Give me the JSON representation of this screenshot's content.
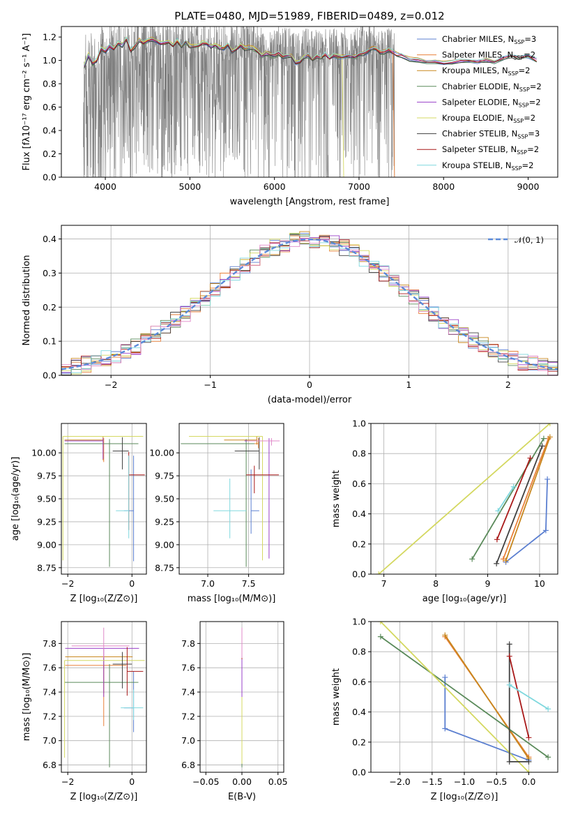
{
  "figure_title": "PLATE=0480, MJD=51989, FIBERID=0489, z=0.012",
  "colors": {
    "data": "#808080",
    "blue": "#5b7fd0",
    "orange": "#e8803a",
    "brown": "#c8871e",
    "green": "#5a8a5a",
    "purple": "#9a40c8",
    "yellow": "#d4d860",
    "black": "#404040",
    "red": "#a81818",
    "cyan": "#7fd8de",
    "pink": "#e088c8",
    "grid": "#b0b0b0",
    "normal": "#5b8ad8"
  },
  "chart_data": [
    {
      "id": "spectrum",
      "type": "line",
      "xlabel": "wavelength [Angstrom, rest frame]",
      "ylabel": "Flux [fλ10⁻¹⁷ erg cm⁻² s⁻¹ A⁻¹]",
      "xlim": [
        3480,
        9350
      ],
      "ylim": [
        0,
        1.29
      ],
      "xticks": [
        4000,
        5000,
        6000,
        7000,
        8000,
        9000
      ],
      "yticks": [
        0.0,
        0.2,
        0.4,
        0.6,
        0.8,
        1.0,
        1.2
      ],
      "grid": false,
      "legend_position": "top-right",
      "series": [
        {
          "name": "Chabrier MILES, N_SSP=3",
          "color": "blue"
        },
        {
          "name": "Salpeter MILES, N_SSP=2",
          "color": "orange"
        },
        {
          "name": "Kroupa MILES, N_SSP=2",
          "color": "brown"
        },
        {
          "name": "Chabrier ELODIE, N_SSP=2",
          "color": "green"
        },
        {
          "name": "Salpeter ELODIE, N_SSP=2",
          "color": "purple"
        },
        {
          "name": "Kroupa ELODIE, N_SSP=2",
          "color": "yellow"
        },
        {
          "name": "Chabrier STELIB, N_SSP=3",
          "color": "black"
        },
        {
          "name": "Salpeter STELIB, N_SSP=2",
          "color": "red"
        },
        {
          "name": "Kroupa STELIB, N_SSP=2",
          "color": "cyan"
        }
      ],
      "model_curve": {
        "x": [
          3750,
          3800,
          3850,
          3900,
          3950,
          4000,
          4050,
          4100,
          4150,
          4200,
          4250,
          4300,
          4350,
          4400,
          4450,
          4500,
          4550,
          4600,
          4650,
          4700,
          4750,
          4800,
          4850,
          4900,
          4950,
          5000,
          5050,
          5100,
          5150,
          5200,
          5250,
          5300,
          5350,
          5400,
          5450,
          5500,
          5550,
          5600,
          5650,
          5700,
          5750,
          5800,
          5850,
          5900,
          5950,
          6000,
          6050,
          6100,
          6150,
          6200,
          6250,
          6300,
          6350,
          6400,
          6450,
          6500,
          6550,
          6600,
          6650,
          6700,
          6750,
          6800,
          6850,
          6900,
          6950,
          7000,
          7050,
          7100,
          7150,
          7200,
          7250,
          7300,
          7350,
          7400,
          7450,
          7500,
          7600,
          7700,
          7800,
          7900,
          8000,
          8100,
          8200,
          8300,
          8400,
          8500,
          8600,
          8700,
          8800,
          8900,
          9000,
          9100
        ],
        "y": [
          0.95,
          1.05,
          0.97,
          1.0,
          1.1,
          1.08,
          1.12,
          1.1,
          1.15,
          1.13,
          1.18,
          1.08,
          1.12,
          1.17,
          1.15,
          1.17,
          1.18,
          1.17,
          1.15,
          1.15,
          1.16,
          1.13,
          1.17,
          1.12,
          1.16,
          1.12,
          1.12,
          1.13,
          1.15,
          1.14,
          1.12,
          1.13,
          1.11,
          1.1,
          1.14,
          1.08,
          1.1,
          1.13,
          1.1,
          1.11,
          1.1,
          1.08,
          1.04,
          1.06,
          1.05,
          1.04,
          1.06,
          1.03,
          1.04,
          1.04,
          0.98,
          0.99,
          1.03,
          1.04,
          1.01,
          1.03,
          1.02,
          1.05,
          1.02,
          1.04,
          1.03,
          1.03,
          1.04,
          1.04,
          1.03,
          1.05,
          1.06,
          1.07,
          1.1,
          1.1,
          1.07,
          1.07,
          1.09,
          1.07,
          1.05,
          1.04,
          1.01,
          1.0,
          0.99,
          0.99,
          0.98,
          0.98,
          1.0,
          1.0,
          0.99,
          1.0,
          0.99,
          1.02,
          1.04,
          1.03,
          1.04,
          1.0
        ]
      }
    },
    {
      "id": "residuals",
      "type": "area",
      "xlabel": "(data-model)/error",
      "ylabel": "Normed distribution",
      "xlim": [
        -2.5,
        2.5
      ],
      "ylim": [
        0,
        0.44
      ],
      "xticks": [
        -2,
        -1,
        0,
        1,
        2
      ],
      "yticks": [
        0.0,
        0.1,
        0.2,
        0.3,
        0.4
      ],
      "grid": true,
      "legend_position": "top-right",
      "legend_label": "𝒩(0, 1)",
      "bins": 50
    },
    {
      "id": "age_vs_Z",
      "type": "scatter",
      "xlabel": "Z [log₁₀(Z/Z⊙)]",
      "ylabel": "age  [log₁₀(age/yr)]",
      "xlim": [
        -2.2,
        0.45
      ],
      "ylim": [
        8.68,
        10.32
      ],
      "xticks": [
        -2,
        0
      ],
      "yticks": [
        8.75,
        9.0,
        9.25,
        9.5,
        9.75,
        10.0
      ],
      "ytick_labels": [
        "8.75",
        "9.00",
        "9.25",
        "9.50",
        "9.75",
        "10.00"
      ],
      "grid": true,
      "points": [
        {
          "color": "blue",
          "x": 0.05,
          "y": 9.37,
          "x_err": [
            0.3,
            0.0
          ],
          "y_err": [
            0.55,
            0.6
          ]
        },
        {
          "color": "orange",
          "x": -0.88,
          "y": 10.1,
          "x_err": [
            1.2,
            0.0
          ],
          "y_err": [
            0.2,
            0.06
          ]
        },
        {
          "color": "brown",
          "x": -0.9,
          "y": 10.14,
          "x_err": [
            1.2,
            0.0
          ],
          "y_err": [
            0.22,
            0.04
          ]
        },
        {
          "color": "green",
          "x": -0.7,
          "y": 10.1,
          "x_err": [
            1.4,
            0.9
          ],
          "y_err": [
            1.34,
            0.05
          ]
        },
        {
          "color": "purple",
          "x": -0.9,
          "y": 10.13,
          "x_err": [
            1.2,
            0.0
          ],
          "y_err": [
            0.2,
            0.03
          ]
        },
        {
          "color": "yellow",
          "x": -2.15,
          "y": 10.18,
          "x_err": [
            0.0,
            2.5
          ],
          "y_err": [
            1.35,
            0.0
          ]
        },
        {
          "color": "black",
          "x": -0.3,
          "y": 10.02,
          "x_err": [
            0.3,
            0.2
          ],
          "y_err": [
            0.2,
            0.15
          ]
        },
        {
          "color": "red",
          "x": -0.1,
          "y": 9.76,
          "x_err": [
            0.0,
            0.5
          ],
          "y_err": [
            0.6,
            0.25
          ]
        },
        {
          "color": "cyan",
          "x": -0.1,
          "y": 9.37,
          "x_err": [
            0.4,
            0.0
          ],
          "y_err": [
            0.3,
            0.6
          ]
        }
      ]
    },
    {
      "id": "age_vs_mass",
      "type": "scatter",
      "xlabel": "mass [log₁₀(M/M⊙)]",
      "xlim": [
        6.65,
        7.93
      ],
      "ylim": [
        8.68,
        10.32
      ],
      "xticks": [
        7.0,
        7.5
      ],
      "xtick_labels": [
        "7.0",
        "7.5"
      ],
      "yticks": [
        8.75,
        9.0,
        9.25,
        9.5,
        9.75,
        10.0
      ],
      "ytick_labels": [
        "8.75",
        "9.00",
        "9.25",
        "9.50",
        "9.75",
        "10.00"
      ],
      "grid": true,
      "points": [
        {
          "color": "blue",
          "x": 7.53,
          "y": 9.37,
          "x_err": [
            0.0,
            0.1
          ],
          "y_err": [
            0.25,
            0.45
          ]
        },
        {
          "color": "orange",
          "x": 7.62,
          "y": 10.1,
          "x_err": [
            0.45,
            0.0
          ],
          "y_err": [
            0.05,
            0.06
          ]
        },
        {
          "color": "brown",
          "x": 7.6,
          "y": 10.14,
          "x_err": [
            0.4,
            0.0
          ],
          "y_err": [
            0.05,
            0.04
          ]
        },
        {
          "color": "green",
          "x": 7.47,
          "y": 10.1,
          "x_err": [
            0.8,
            0.1
          ],
          "y_err": [
            1.34,
            0.05
          ]
        },
        {
          "color": "purple",
          "x": 7.75,
          "y": 10.13,
          "x_err": [
            0.3,
            0.0
          ],
          "y_err": [
            1.28,
            0.03
          ]
        },
        {
          "color": "yellow",
          "x": 7.67,
          "y": 10.18,
          "x_err": [
            0.9,
            0.0
          ],
          "y_err": [
            1.35,
            0.0
          ]
        },
        {
          "color": "black",
          "x": 7.63,
          "y": 10.02,
          "x_err": [
            0.3,
            0.0
          ],
          "y_err": [
            0.2,
            0.15
          ]
        },
        {
          "color": "red",
          "x": 7.57,
          "y": 9.76,
          "x_err": [
            0.1,
            0.3
          ],
          "y_err": [
            0.2,
            0.1
          ]
        },
        {
          "color": "cyan",
          "x": 7.27,
          "y": 9.37,
          "x_err": [
            0.2,
            0.2
          ],
          "y_err": [
            0.3,
            0.35
          ]
        },
        {
          "color": "pink",
          "x": 7.78,
          "y": 10.13,
          "x_err": [
            0.3,
            0.1
          ],
          "y_err": [
            0.05,
            0.03
          ]
        }
      ]
    },
    {
      "id": "weight_vs_age",
      "type": "line",
      "xlabel": "age  [log₁₀(age/yr)]",
      "ylabel": "mass weight",
      "xlim": [
        6.75,
        10.35
      ],
      "ylim": [
        0,
        1.0
      ],
      "xticks": [
        7,
        8,
        9,
        10
      ],
      "yticks": [
        0.0,
        0.2,
        0.4,
        0.6,
        0.8,
        1.0
      ],
      "ytick_labels": [
        "0.0",
        "0.2",
        "0.4",
        "0.6",
        "0.8",
        "1.0"
      ],
      "grid": true,
      "series": [
        {
          "color": "blue",
          "x": [
            9.35,
            10.12,
            10.15
          ],
          "y": [
            0.08,
            0.29,
            0.63
          ]
        },
        {
          "color": "orange",
          "x": [
            9.3,
            10.17
          ],
          "y": [
            0.1,
            0.9
          ]
        },
        {
          "color": "brown",
          "x": [
            9.35,
            10.2
          ],
          "y": [
            0.09,
            0.91
          ]
        },
        {
          "color": "green",
          "x": [
            8.7,
            10.08
          ],
          "y": [
            0.1,
            0.9
          ]
        },
        {
          "color": "yellow",
          "x": [
            6.9,
            10.2
          ],
          "y": [
            0.0,
            1.0
          ]
        },
        {
          "color": "black",
          "x": [
            9.17,
            10.05
          ],
          "y": [
            0.07,
            0.85
          ]
        },
        {
          "color": "red",
          "x": [
            9.18,
            9.82
          ],
          "y": [
            0.23,
            0.77
          ]
        },
        {
          "color": "cyan",
          "x": [
            9.2,
            9.5
          ],
          "y": [
            0.42,
            0.58
          ]
        }
      ]
    },
    {
      "id": "mass_vs_Z",
      "type": "scatter",
      "xlabel": "Z [log₁₀(Z/Z⊙)]",
      "ylabel": "mass [log₁₀(M/M⊙)]",
      "xlim": [
        -2.2,
        0.45
      ],
      "ylim": [
        6.74,
        7.98
      ],
      "xticks": [
        -2,
        0
      ],
      "yticks": [
        6.8,
        7.0,
        7.2,
        7.4,
        7.6,
        7.8
      ],
      "ytick_labels": [
        "6.8",
        "7.0",
        "7.2",
        "7.4",
        "7.6",
        "7.8"
      ],
      "grid": true,
      "points": [
        {
          "color": "blue",
          "x": 0.05,
          "y": 7.27,
          "x_err": [
            0.3,
            0.0
          ],
          "y_err": [
            0.2,
            0.3
          ]
        },
        {
          "color": "orange",
          "x": -0.88,
          "y": 7.62,
          "x_err": [
            1.2,
            0.7
          ],
          "y_err": [
            0.5,
            0.0
          ]
        },
        {
          "color": "brown",
          "x": -0.88,
          "y": 7.69,
          "x_err": [
            1.2,
            0.9
          ],
          "y_err": [
            0.3,
            0.0
          ]
        },
        {
          "color": "green",
          "x": -0.7,
          "y": 7.48,
          "x_err": [
            1.4,
            0.9
          ],
          "y_err": [
            0.7,
            0.15
          ]
        },
        {
          "color": "purple",
          "x": -0.88,
          "y": 7.76,
          "x_err": [
            1.2,
            1.1
          ],
          "y_err": [
            0.4,
            0.0
          ]
        },
        {
          "color": "yellow",
          "x": -2.1,
          "y": 7.66,
          "x_err": [
            0.0,
            2.5
          ],
          "y_err": [
            0.8,
            0.0
          ]
        },
        {
          "color": "black",
          "x": -0.3,
          "y": 7.63,
          "x_err": [
            0.3,
            0.3
          ],
          "y_err": [
            0.2,
            0.1
          ]
        },
        {
          "color": "red",
          "x": -0.15,
          "y": 7.57,
          "x_err": [
            0.0,
            0.5
          ],
          "y_err": [
            0.2,
            0.2
          ]
        },
        {
          "color": "cyan",
          "x": 0.05,
          "y": 7.27,
          "x_err": [
            0.4,
            0.3
          ],
          "y_err": [
            0.1,
            0.15
          ]
        },
        {
          "color": "pink",
          "x": -0.88,
          "y": 7.78,
          "x_err": [
            1.0,
            0.8
          ],
          "y_err": [
            0.1,
            0.15
          ]
        }
      ]
    },
    {
      "id": "mass_vs_EBV",
      "type": "scatter",
      "xlabel": "E(B-V)",
      "xlim": [
        -0.058,
        0.058
      ],
      "ylim": [
        6.74,
        7.98
      ],
      "xticks": [
        -0.05,
        0.0,
        0.05
      ],
      "xtick_labels": [
        "−0.05",
        "0.00",
        "0.05"
      ],
      "yticks": [
        6.8,
        7.0,
        7.2,
        7.4,
        7.6,
        7.8
      ],
      "ytick_labels": [
        "6.8",
        "7.0",
        "7.2",
        "7.4",
        "7.6",
        "7.8"
      ],
      "grid": true,
      "points": [
        {
          "color": "blue",
          "x": 0.0,
          "y": 7.27,
          "y_err": [
            0.4,
            0.5
          ]
        },
        {
          "color": "orange",
          "x": 0.0,
          "y": 7.62,
          "y_err": [
            0.5,
            0.3
          ]
        },
        {
          "color": "green",
          "x": 0.0,
          "y": 7.48,
          "y_err": [
            0.7,
            0.3
          ]
        },
        {
          "color": "yellow",
          "x": 0.0,
          "y": 7.66,
          "y_err": [
            0.85,
            0.0
          ]
        },
        {
          "color": "purple",
          "x": 0.0,
          "y": 7.76,
          "y_err": [
            0.4,
            0.1
          ]
        },
        {
          "color": "red",
          "x": 0.0,
          "y": 7.72,
          "y_err": [
            0.05,
            0.05
          ]
        },
        {
          "color": "pink",
          "x": 0.0,
          "y": 7.78,
          "y_err": [
            0.1,
            0.15
          ]
        }
      ]
    },
    {
      "id": "weight_vs_Z",
      "type": "line",
      "xlabel": "Z [log₁₀(Z/Z⊙)]",
      "ylabel": "mass weight",
      "xlim": [
        -2.45,
        0.45
      ],
      "ylim": [
        0,
        1.0
      ],
      "xticks": [
        -2.0,
        -1.5,
        -1.0,
        -0.5,
        0.0
      ],
      "xtick_labels": [
        "−2.0",
        "−1.5",
        "−1.0",
        "−0.5",
        "0.0"
      ],
      "yticks": [
        0.0,
        0.2,
        0.4,
        0.6,
        0.8,
        1.0
      ],
      "ytick_labels": [
        "0.0",
        "0.2",
        "0.4",
        "0.6",
        "0.8",
        "1.0"
      ],
      "grid": true,
      "series": [
        {
          "color": "blue",
          "x": [
            -1.3,
            -1.3,
            0.0
          ],
          "y": [
            0.63,
            0.29,
            0.08
          ]
        },
        {
          "color": "orange",
          "x": [
            -1.3,
            0.0
          ],
          "y": [
            0.9,
            0.1
          ]
        },
        {
          "color": "brown",
          "x": [
            -1.3,
            0.0
          ],
          "y": [
            0.91,
            0.09
          ]
        },
        {
          "color": "green",
          "x": [
            -2.3,
            0.3
          ],
          "y": [
            0.9,
            0.1
          ]
        },
        {
          "color": "yellow",
          "x": [
            -2.3,
            0.0
          ],
          "y": [
            1.0,
            0.0
          ]
        },
        {
          "color": "black",
          "x": [
            -0.3,
            -0.3,
            0.0
          ],
          "y": [
            0.85,
            0.07,
            0.07
          ]
        },
        {
          "color": "red",
          "x": [
            -0.3,
            0.0
          ],
          "y": [
            0.77,
            0.23
          ]
        },
        {
          "color": "cyan",
          "x": [
            -0.3,
            0.3
          ],
          "y": [
            0.58,
            0.42
          ]
        }
      ]
    }
  ]
}
